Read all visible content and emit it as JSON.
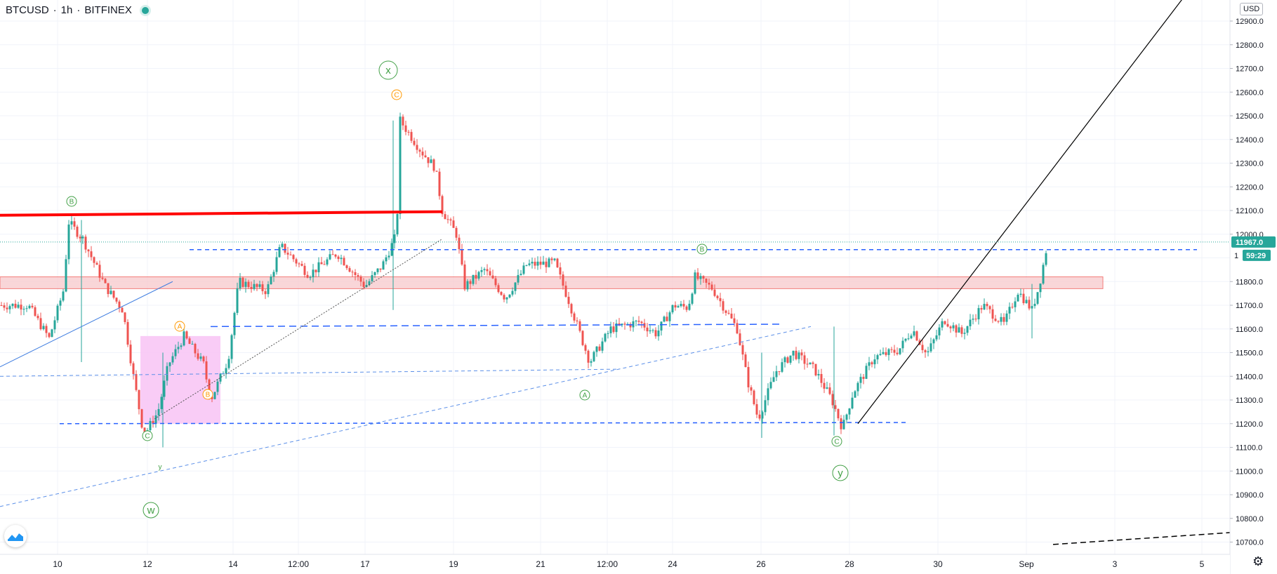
{
  "header": {
    "symbol": "BTCUSD",
    "interval": "1h",
    "exchange": "BITFINEX",
    "separator": "·"
  },
  "currency_label": "USD",
  "price_scale": {
    "ticks": [
      "12900.0",
      "12800.0",
      "12700.0",
      "12600.0",
      "12500.0",
      "12400.0",
      "12300.0",
      "12200.0",
      "12100.0",
      "12000.0",
      "11800.0",
      "11700.0",
      "11600.0",
      "11500.0",
      "11400.0",
      "11300.0",
      "11200.0",
      "11100.0",
      "11000.0",
      "10900.0",
      "10800.0",
      "10700.0"
    ],
    "last_price": "11967.0",
    "countdown": "59:29",
    "countdown_prefix": "1"
  },
  "time_axis": {
    "labels": [
      "10",
      "12",
      "14",
      "12:00",
      "17",
      "19",
      "21",
      "12:00",
      "24",
      "26",
      "28",
      "30",
      "Sep",
      "3",
      "5"
    ]
  },
  "colors": {
    "up": "#26a69a",
    "down": "#ef5350",
    "wave_green": "#43a047",
    "wave_orange": "#ff9800",
    "level_blue": "#2962ff",
    "resistance_red": "#ff0000",
    "zone_red": "#f8c9cc",
    "zone_pink": "#f8c3f5"
  },
  "chart_data": {
    "type": "candlestick",
    "ylim": [
      10670,
      12970
    ],
    "annotations": [
      "x",
      "C",
      "B",
      "A",
      "B",
      "C",
      "w",
      "y",
      "A",
      "B",
      "C",
      "y"
    ],
    "key_points": [
      {
        "time": "10",
        "price": 12050
      },
      {
        "time": "12",
        "price": 11120
      },
      {
        "time": "17",
        "price": 12490
      },
      {
        "time": "21",
        "price": 11390
      },
      {
        "time": "24",
        "price": 11840
      },
      {
        "time": "26",
        "price": 11130
      },
      {
        "time": "28",
        "price": 11150
      },
      {
        "time": "Sep",
        "price": 11967
      }
    ]
  }
}
